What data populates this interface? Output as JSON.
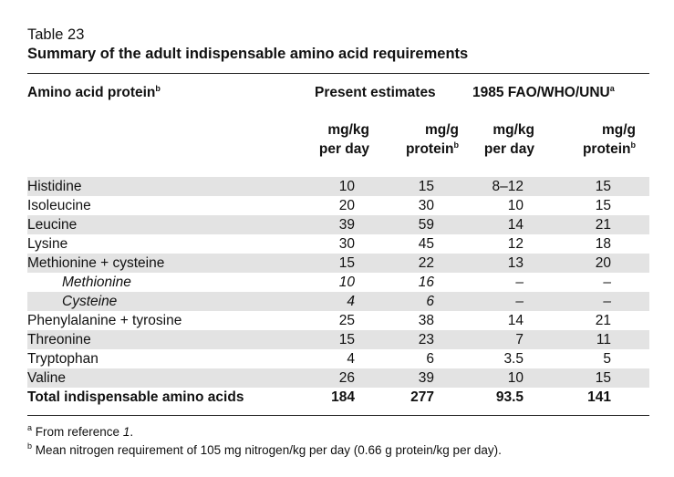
{
  "table_number": "Table 23",
  "title": "Summary of the adult indispensable amino acid requirements",
  "headers": {
    "col_label": "Amino acid protein",
    "col_label_sup": "b",
    "group1": "Present estimates",
    "group2": "1985 FAO/WHO/UNU",
    "group2_sup": "a",
    "units": {
      "c1_line1": "mg/kg",
      "c1_line2": "per day",
      "c2_line1": "mg/g",
      "c2_line2": "protein",
      "c2_sup": "b",
      "c3_line1": "mg/kg",
      "c3_line2": "per day",
      "c4_line1": "mg/g",
      "c4_line2": "protein",
      "c4_sup": "b"
    }
  },
  "rows": [
    {
      "name": "Histidine",
      "v": [
        "10",
        "15",
        "8–12",
        "15"
      ]
    },
    {
      "name": "Isoleucine",
      "v": [
        "20",
        "30",
        "10",
        "15"
      ]
    },
    {
      "name": "Leucine",
      "v": [
        "39",
        "59",
        "14",
        "21"
      ]
    },
    {
      "name": "Lysine",
      "v": [
        "30",
        "45",
        "12",
        "18"
      ]
    },
    {
      "name": "Methionine + cysteine",
      "v": [
        "15",
        "22",
        "13",
        "20"
      ]
    },
    {
      "name": "Methionine",
      "v": [
        "10",
        "16",
        "–",
        "–"
      ]
    },
    {
      "name": "Cysteine",
      "v": [
        "4",
        "6",
        "–",
        "–"
      ]
    },
    {
      "name": "Phenylalanine + tyrosine",
      "v": [
        "25",
        "38",
        "14",
        "21"
      ]
    },
    {
      "name": "Threonine",
      "v": [
        "15",
        "23",
        "7",
        "11"
      ]
    },
    {
      "name": "Tryptophan",
      "v": [
        "4",
        "6",
        "3.5",
        "5"
      ]
    },
    {
      "name": "Valine",
      "v": [
        "26",
        "39",
        "10",
        "15"
      ]
    },
    {
      "name": "Total indispensable amino acids",
      "v": [
        "184",
        "277",
        "93.5",
        "141"
      ]
    }
  ],
  "footnotes": {
    "a_mark": "a",
    "a_text": "From reference ",
    "a_ref": "1",
    "a_end": ".",
    "b_mark": "b",
    "b_text": "Mean nitrogen requirement of 105 mg nitrogen/kg per day (0.66 g protein/kg per day)."
  }
}
